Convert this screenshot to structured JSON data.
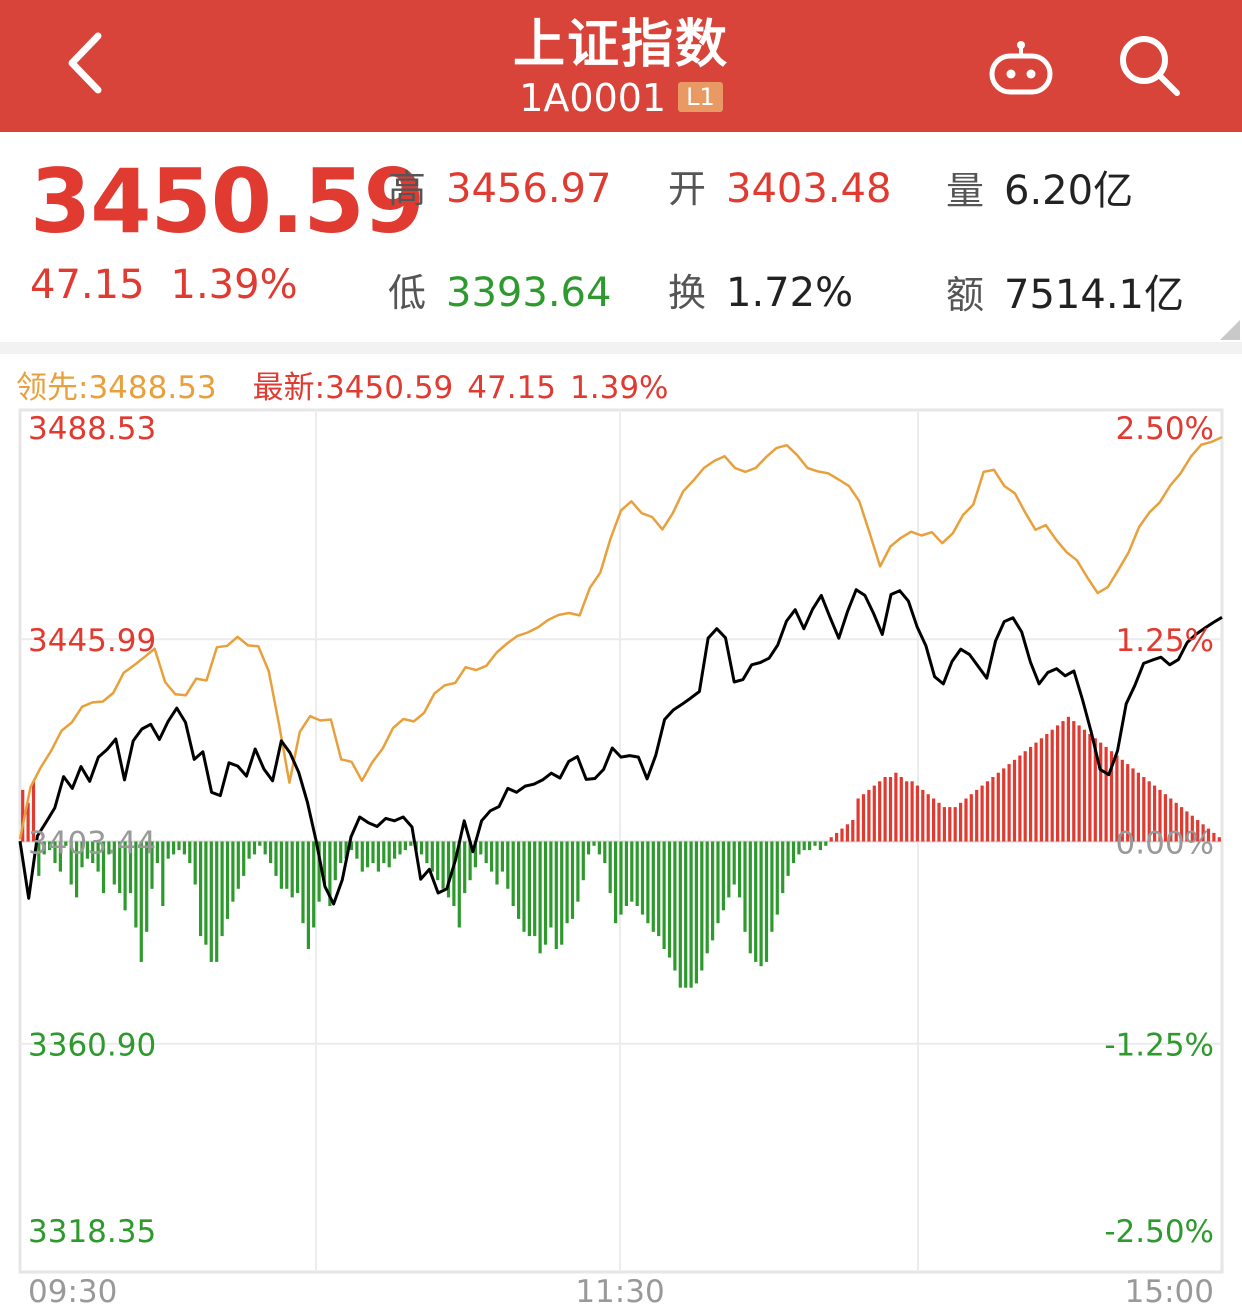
{
  "header": {
    "title": "上证指数",
    "code": "1A0001",
    "badge": "L1"
  },
  "quote": {
    "price": "3450.59",
    "change": "47.15",
    "change_pct": "1.39%",
    "high_label": "高",
    "high": "3456.97",
    "low_label": "低",
    "low": "3393.64",
    "open_label": "开",
    "open": "3403.48",
    "turnover_label": "换",
    "turnover": "1.72%",
    "volume_label": "量",
    "volume": "6.20亿",
    "amount_label": "额",
    "amount": "7514.1亿"
  },
  "legend": {
    "leading": "领先:3488.53",
    "latest": "最新:3450.59",
    "latest_change": "47.15",
    "latest_pct": "1.39%"
  },
  "colors": {
    "header_bg": "#d8433a",
    "up": "#e03a31",
    "down": "#2e9a2e",
    "leading_line": "#e8a03c",
    "index_line": "#000000"
  },
  "chart_data": {
    "type": "line",
    "ylim": [
      3318.35,
      3488.53
    ],
    "baseline": 3403.44,
    "y_tick_labels": [
      "3488.53",
      "3445.99",
      "3403.44",
      "3360.90",
      "3318.35"
    ],
    "y_tick_values": [
      3488.53,
      3445.99,
      3403.44,
      3360.9,
      3318.35
    ],
    "pct_tick_labels": [
      "2.50%",
      "1.25%",
      "0.00%",
      "-1.25%",
      "-2.50%"
    ],
    "x_tick_labels": [
      "09:30",
      "11:30",
      "15:00"
    ],
    "series": [
      {
        "name": "最新",
        "values": [
          3403.5,
          3391.5,
          3404.6,
          3407.5,
          3410.5,
          3417.1,
          3414.6,
          3419.2,
          3416.1,
          3421.2,
          3422.8,
          3425.0,
          3416.4,
          3424.6,
          3427.1,
          3428.1,
          3424.9,
          3428.7,
          3431.5,
          3428.5,
          3420.7,
          3422.3,
          3413.8,
          3413.1,
          3420.0,
          3419.3,
          3417.2,
          3422.9,
          3418.7,
          3416.2,
          3424.6,
          3422.1,
          3418.0,
          3411.7,
          3403.6,
          3394.0,
          3390.3,
          3395.4,
          3404.4,
          3408.6,
          3407.4,
          3406.6,
          3408.3,
          3407.8,
          3408.6,
          3406.5,
          3395.5,
          3397.6,
          3392.6,
          3393.5,
          3399.6,
          3407.8,
          3401.3,
          3407.8,
          3409.9,
          3410.8,
          3414.6,
          3413.8,
          3415.1,
          3415.5,
          3416.4,
          3417.8,
          3416.8,
          3420.3,
          3421.3,
          3416.5,
          3416.7,
          3418.6,
          3423.1,
          3421.2,
          3421.5,
          3421.2,
          3416.6,
          3421.6,
          3429.1,
          3431.1,
          3432.3,
          3433.6,
          3435.0,
          3446.2,
          3448.2,
          3446.3,
          3437.0,
          3437.5,
          3440.6,
          3441.1,
          3442.0,
          3444.8,
          3449.8,
          3452.2,
          3448.2,
          3452.3,
          3455.2,
          3450.6,
          3446.2,
          3451.8,
          3456.4,
          3455.2,
          3451.4,
          3447.0,
          3455.4,
          3456.2,
          3454.0,
          3448.6,
          3444.6,
          3438.1,
          3436.6,
          3441.3,
          3443.9,
          3442.8,
          3440.3,
          3437.8,
          3445.6,
          3449.7,
          3450.5,
          3447.5,
          3441.2,
          3436.6,
          3439.0,
          3439.8,
          3438.3,
          3439.3,
          3433.2,
          3426.4,
          3418.6,
          3417.5,
          3422.5,
          3432.4,
          3436.3,
          3440.9,
          3441.6,
          3442.2,
          3440.6,
          3441.7,
          3445.3,
          3447.0,
          3448.3,
          3449.5,
          3450.6
        ],
        "color": "#000000"
      },
      {
        "name": "领先",
        "values": [
          3403.9,
          3414.8,
          3419.0,
          3422.5,
          3426.7,
          3428.5,
          3431.8,
          3432.7,
          3432.9,
          3434.7,
          3438.9,
          3440.5,
          3442.2,
          3444.0,
          3437.0,
          3434.4,
          3434.2,
          3437.7,
          3437.3,
          3444.3,
          3444.6,
          3446.5,
          3444.7,
          3444.5,
          3439.3,
          3428.0,
          3415.8,
          3426.5,
          3429.8,
          3428.9,
          3429.1,
          3420.7,
          3420.2,
          3416.2,
          3420.1,
          3423.0,
          3427.3,
          3429.2,
          3428.7,
          3430.5,
          3434.6,
          3436.3,
          3436.8,
          3440.1,
          3439.5,
          3440.4,
          3443.2,
          3445.1,
          3446.7,
          3447.4,
          3448.5,
          3450.1,
          3451.1,
          3451.5,
          3451.0,
          3456.8,
          3460.0,
          3467.2,
          3473.1,
          3475.0,
          3472.5,
          3471.7,
          3469.1,
          3472.5,
          3477.1,
          3479.4,
          3482.0,
          3483.5,
          3484.5,
          3482.0,
          3481.2,
          3482.0,
          3484.3,
          3486.2,
          3486.8,
          3484.7,
          3482.0,
          3481.3,
          3480.9,
          3479.6,
          3478.2,
          3475.0,
          3468.3,
          3461.3,
          3465.5,
          3467.3,
          3468.6,
          3467.8,
          3468.5,
          3466.2,
          3468.2,
          3472.1,
          3474.3,
          3481.2,
          3481.6,
          3478.2,
          3476.7,
          3472.7,
          3469.0,
          3470.0,
          3466.9,
          3464.3,
          3462.6,
          3459.0,
          3455.7,
          3457.0,
          3460.6,
          3464.3,
          3469.6,
          3472.7,
          3474.8,
          3478.3,
          3480.9,
          3484.4,
          3486.9,
          3487.5,
          3488.5
        ],
        "color": "#e8a03c"
      }
    ],
    "bars": {
      "name": "红绿柱",
      "values": [
        12,
        9,
        14,
        -8,
        -3,
        -2,
        -5,
        -7,
        -1,
        -10,
        -13,
        -6,
        -4,
        -5,
        -7,
        -12,
        -3,
        -10,
        -12,
        -16,
        -12,
        -20,
        -28,
        -21,
        -11,
        -5,
        -15,
        -4,
        -3,
        -2,
        -3,
        -5,
        -10,
        -22,
        -24,
        -28,
        -28,
        -22,
        -18,
        -14,
        -11,
        -8,
        -4,
        -3,
        -1,
        -3,
        -5,
        -8,
        -11,
        -11,
        -13,
        -12,
        -19,
        -25,
        -20,
        -14,
        -10,
        -15,
        -9,
        -5,
        -4,
        -2,
        -4,
        -7,
        -6,
        -5,
        -7,
        -5,
        -6,
        -4,
        -3,
        -2,
        -1,
        -2,
        -3,
        -5,
        -7,
        -9,
        -11,
        -13,
        -15,
        -20,
        -12,
        -9,
        -6,
        -3,
        -5,
        -7,
        -10,
        -7,
        -11,
        -15,
        -18,
        -21,
        -22,
        -22,
        -26,
        -24,
        -20,
        -25,
        -24,
        -19,
        -18,
        -14,
        -9,
        -3,
        -1,
        -3,
        -5,
        -12,
        -19,
        -17,
        -15,
        -14,
        -15,
        -17,
        -19,
        -21,
        -22,
        -25,
        -27,
        -30,
        -34,
        -34,
        -34,
        -33,
        -30,
        -26,
        -23,
        -19,
        -16,
        -13,
        -10,
        -13,
        -21,
        -26,
        -28,
        -29,
        -28,
        -21,
        -17,
        -12,
        -8,
        -5,
        -3,
        -2,
        -2,
        -1,
        -2,
        -1,
        1,
        2,
        3,
        4,
        5,
        10,
        11,
        12,
        13,
        14,
        15,
        15,
        16,
        15,
        14,
        14,
        13,
        12,
        11,
        10,
        9,
        8,
        8,
        8,
        9,
        10,
        11,
        12,
        13,
        14,
        15,
        16,
        17,
        18,
        19,
        20,
        21,
        22,
        23,
        24,
        25,
        26,
        27,
        28,
        29,
        28,
        27,
        26,
        25,
        24,
        23,
        22,
        21,
        20,
        19,
        18,
        17,
        16,
        15,
        14,
        13,
        12,
        11,
        10,
        9,
        8,
        7,
        6,
        5,
        4,
        3,
        2,
        1
      ]
    }
  }
}
